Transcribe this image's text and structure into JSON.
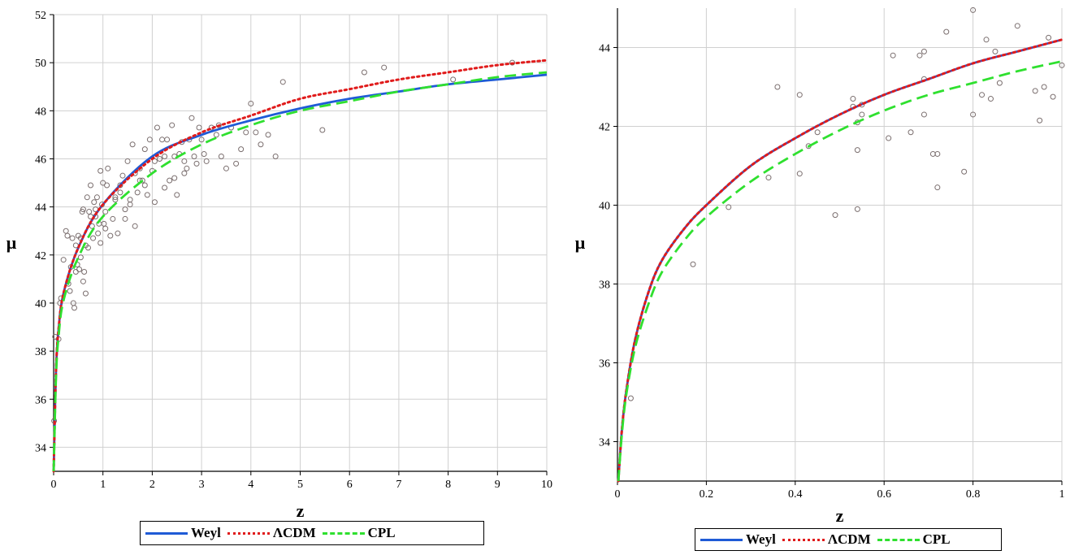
{
  "chart_data": [
    {
      "type": "scatter",
      "xlabel": "z",
      "ylabel": "μ",
      "xlim": [
        0,
        10
      ],
      "ylim": [
        33,
        52
      ],
      "xticks": [
        0,
        1,
        2,
        3,
        4,
        5,
        6,
        7,
        8,
        9,
        10
      ],
      "yticks": [
        34,
        36,
        38,
        40,
        42,
        44,
        46,
        48,
        50,
        52
      ],
      "grid": true,
      "legend_position": "bottom",
      "curves": [
        {
          "name": "Weyl",
          "style": "solid",
          "color": "#1f5bd6",
          "x": [
            0.001,
            0.01,
            0.05,
            0.1,
            0.2,
            0.5,
            1,
            2,
            3,
            4,
            5,
            6,
            7,
            8,
            9,
            10
          ],
          "y": [
            33.0,
            33.9,
            37.3,
            38.9,
            40.4,
            42.3,
            44.1,
            46.1,
            47.0,
            47.6,
            48.1,
            48.5,
            48.8,
            49.1,
            49.3,
            49.5
          ]
        },
        {
          "name": "ΛCDM",
          "style": "dotted",
          "color": "#e01b1b",
          "x": [
            0.001,
            0.01,
            0.05,
            0.1,
            0.2,
            0.5,
            1,
            2,
            3,
            4,
            5,
            6,
            7,
            8,
            9,
            10
          ],
          "y": [
            33.0,
            33.9,
            37.3,
            38.9,
            40.4,
            42.3,
            44.1,
            46.0,
            47.1,
            47.8,
            48.5,
            48.9,
            49.3,
            49.6,
            49.9,
            50.1
          ]
        },
        {
          "name": "CPL",
          "style": "dashed",
          "color": "#2fe02f",
          "x": [
            0.001,
            0.01,
            0.05,
            0.1,
            0.2,
            0.5,
            1,
            2,
            3,
            4,
            5,
            6,
            7,
            8,
            9,
            10
          ],
          "y": [
            33.0,
            33.8,
            37.0,
            38.6,
            40.1,
            41.9,
            43.6,
            45.4,
            46.6,
            47.4,
            48.0,
            48.4,
            48.8,
            49.1,
            49.4,
            49.6
          ]
        }
      ],
      "points": {
        "x": [
          0.01,
          0.03,
          0.1,
          0.13,
          0.15,
          0.2,
          0.25,
          0.28,
          0.3,
          0.33,
          0.35,
          0.38,
          0.4,
          0.42,
          0.45,
          0.48,
          0.5,
          0.52,
          0.55,
          0.58,
          0.6,
          0.62,
          0.65,
          0.68,
          0.7,
          0.72,
          0.75,
          0.78,
          0.8,
          0.82,
          0.85,
          0.88,
          0.9,
          0.92,
          0.95,
          0.98,
          1.0,
          1.02,
          1.05,
          1.08,
          1.1,
          1.15,
          1.2,
          1.25,
          1.3,
          1.35,
          1.4,
          1.45,
          1.5,
          1.55,
          1.6,
          1.65,
          1.7,
          1.75,
          1.8,
          1.85,
          1.9,
          1.95,
          2.0,
          2.05,
          2.1,
          2.15,
          2.2,
          2.25,
          2.3,
          2.35,
          2.4,
          2.45,
          2.5,
          2.55,
          2.6,
          2.65,
          2.7,
          2.75,
          2.8,
          2.85,
          2.9,
          2.95,
          3.0,
          3.1,
          3.2,
          3.3,
          3.4,
          3.5,
          3.6,
          3.7,
          3.8,
          3.9,
          4.0,
          4.1,
          4.2,
          4.35,
          4.5,
          4.65,
          5.45,
          6.3,
          6.7,
          8.1,
          9.3,
          0.55,
          0.65,
          0.75,
          0.85,
          0.95,
          1.05,
          1.25,
          1.45,
          1.65,
          1.85,
          2.05,
          2.25,
          2.45,
          2.65,
          3.05,
          3.35,
          1.35,
          1.55,
          1.75,
          0.45,
          0.6
        ],
        "y": [
          35.1,
          38.6,
          38.5,
          40.0,
          40.2,
          41.8,
          43.0,
          42.8,
          40.8,
          40.5,
          41.5,
          42.7,
          40.0,
          39.8,
          42.4,
          41.6,
          42.8,
          41.4,
          41.9,
          43.8,
          43.9,
          41.3,
          40.4,
          44.4,
          42.3,
          43.8,
          44.9,
          43.2,
          42.7,
          44.2,
          43.6,
          44.4,
          42.9,
          43.3,
          45.5,
          44.1,
          45.0,
          43.3,
          43.1,
          44.9,
          45.6,
          42.8,
          43.5,
          44.3,
          42.9,
          44.9,
          45.3,
          43.5,
          45.9,
          44.3,
          46.6,
          43.2,
          44.6,
          45.6,
          45.1,
          46.4,
          44.5,
          46.8,
          45.5,
          44.2,
          47.3,
          46.0,
          46.8,
          44.8,
          46.8,
          45.1,
          47.4,
          46.1,
          44.5,
          46.2,
          46.7,
          45.4,
          45.6,
          46.8,
          47.7,
          46.1,
          45.8,
          47.3,
          46.8,
          45.9,
          47.3,
          47.0,
          46.1,
          45.6,
          47.3,
          45.8,
          46.4,
          47.1,
          48.3,
          47.1,
          46.6,
          47.0,
          46.1,
          49.2,
          47.2,
          49.6,
          49.8,
          49.3,
          50.0,
          42.7,
          42.4,
          43.6,
          43.9,
          42.5,
          43.8,
          44.4,
          43.9,
          45.4,
          44.9,
          45.9,
          46.1,
          45.2,
          45.9,
          46.2,
          47.4,
          44.6,
          44.1,
          45.1,
          41.3,
          40.9
        ]
      },
      "legend": [
        "Weyl",
        "ΛCDM",
        "CPL"
      ]
    },
    {
      "type": "scatter",
      "xlabel": "z",
      "ylabel": "μ",
      "xlim": [
        0,
        1
      ],
      "ylim": [
        33,
        45
      ],
      "xticks": [
        0,
        0.2,
        0.4,
        0.6,
        0.8,
        1
      ],
      "yticks": [
        34,
        36,
        38,
        40,
        42,
        44
      ],
      "grid": true,
      "legend_position": "bottom",
      "curves": [
        {
          "name": "Weyl",
          "style": "solid",
          "color": "#1f5bd6",
          "x": [
            0.002,
            0.01,
            0.02,
            0.04,
            0.07,
            0.1,
            0.15,
            0.2,
            0.3,
            0.4,
            0.5,
            0.6,
            0.7,
            0.8,
            0.9,
            1.0
          ],
          "y": [
            33.0,
            34.3,
            35.3,
            36.6,
            37.8,
            38.6,
            39.4,
            40.0,
            41.0,
            41.7,
            42.3,
            42.8,
            43.2,
            43.6,
            43.9,
            44.2
          ]
        },
        {
          "name": "ΛCDM",
          "style": "dotted",
          "color": "#e01b1b",
          "x": [
            0.002,
            0.01,
            0.02,
            0.04,
            0.07,
            0.1,
            0.15,
            0.2,
            0.3,
            0.4,
            0.5,
            0.6,
            0.7,
            0.8,
            0.9,
            1.0
          ],
          "y": [
            33.0,
            34.3,
            35.3,
            36.6,
            37.8,
            38.6,
            39.4,
            40.0,
            41.0,
            41.7,
            42.3,
            42.8,
            43.2,
            43.6,
            43.9,
            44.2
          ]
        },
        {
          "name": "CPL",
          "style": "dashed",
          "color": "#2fe02f",
          "x": [
            0.002,
            0.01,
            0.02,
            0.04,
            0.07,
            0.1,
            0.15,
            0.2,
            0.3,
            0.4,
            0.5,
            0.6,
            0.7,
            0.8,
            0.9,
            1.0
          ],
          "y": [
            33.0,
            34.2,
            35.2,
            36.4,
            37.5,
            38.3,
            39.1,
            39.7,
            40.6,
            41.3,
            41.9,
            42.4,
            42.8,
            43.1,
            43.4,
            43.65
          ]
        }
      ],
      "points": {
        "x": [
          0.03,
          0.17,
          0.25,
          0.34,
          0.36,
          0.41,
          0.41,
          0.43,
          0.45,
          0.49,
          0.53,
          0.53,
          0.54,
          0.54,
          0.54,
          0.55,
          0.61,
          0.62,
          0.66,
          0.68,
          0.69,
          0.69,
          0.69,
          0.71,
          0.72,
          0.72,
          0.74,
          0.78,
          0.8,
          0.8,
          0.82,
          0.83,
          0.84,
          0.85,
          0.86,
          0.9,
          0.94,
          0.95,
          0.96,
          0.97,
          0.98,
          1.0,
          0.55
        ],
        "y": [
          35.1,
          38.5,
          39.95,
          40.7,
          43.0,
          42.8,
          40.8,
          41.5,
          41.85,
          39.75,
          42.7,
          42.5,
          42.1,
          41.4,
          39.9,
          42.3,
          41.7,
          43.8,
          41.85,
          43.8,
          43.9,
          42.3,
          43.2,
          41.3,
          41.3,
          40.45,
          44.4,
          40.85,
          42.3,
          44.95,
          42.8,
          44.2,
          42.7,
          43.9,
          43.1,
          44.55,
          42.9,
          42.15,
          43.0,
          44.25,
          42.75,
          43.55,
          42.55
        ]
      },
      "legend": [
        "Weyl",
        "ΛCDM",
        "CPL"
      ]
    }
  ]
}
